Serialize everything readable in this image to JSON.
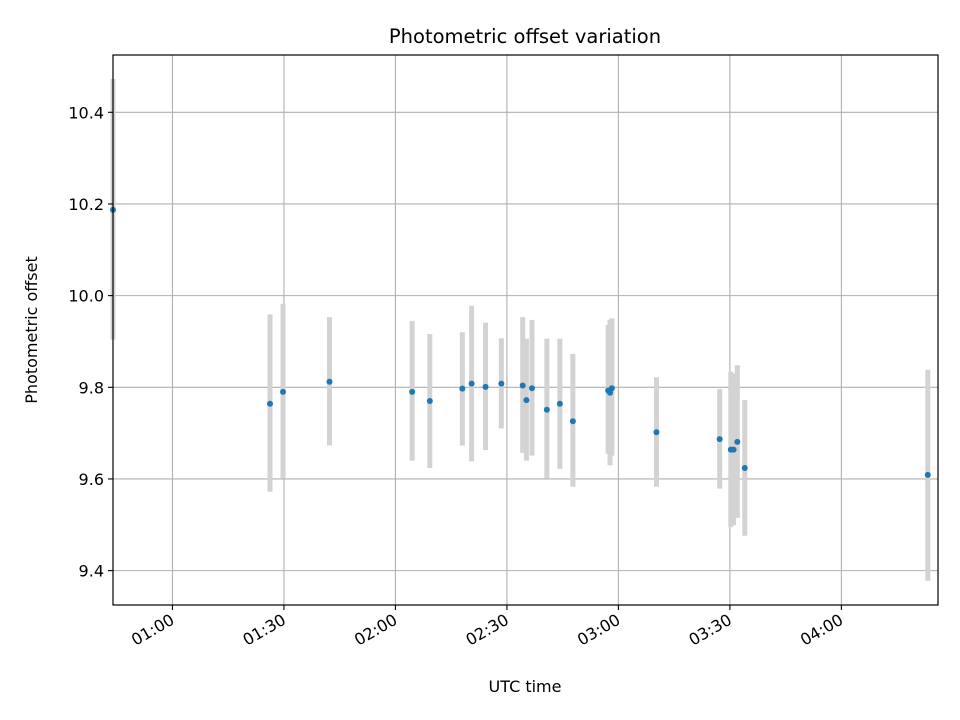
{
  "chart_data": {
    "type": "scatter",
    "title": "Photometric offset variation",
    "xlabel": "UTC time",
    "ylabel": "Photometric offset",
    "x_axis": "time",
    "xlim": [
      "00:44",
      "04:26"
    ],
    "ylim": [
      9.325,
      10.525
    ],
    "xticks": [
      "01:00",
      "01:30",
      "02:00",
      "02:30",
      "03:00",
      "03:30",
      "04:00"
    ],
    "yticks": [
      9.4,
      9.6,
      9.8,
      10.0,
      10.2,
      10.4
    ],
    "grid": true,
    "colors": {
      "point": "#1f77b4",
      "errorbar": "#d3d3d3",
      "grid": "#b0b0b0"
    },
    "points": [
      {
        "x": "00:44:00",
        "y": 10.187,
        "low": 9.904,
        "high": 10.473
      },
      {
        "x": "01:26:15",
        "y": 9.764,
        "low": 9.572,
        "high": 9.959
      },
      {
        "x": "01:29:45",
        "y": 9.79,
        "low": 9.601,
        "high": 9.982
      },
      {
        "x": "01:42:15",
        "y": 9.812,
        "low": 9.673,
        "high": 9.953
      },
      {
        "x": "02:04:30",
        "y": 9.79,
        "low": 9.64,
        "high": 9.945
      },
      {
        "x": "02:09:15",
        "y": 9.77,
        "low": 9.624,
        "high": 9.916
      },
      {
        "x": "02:18:00",
        "y": 9.797,
        "low": 9.673,
        "high": 9.92
      },
      {
        "x": "02:20:30",
        "y": 9.808,
        "low": 9.638,
        "high": 9.978
      },
      {
        "x": "02:24:15",
        "y": 9.801,
        "low": 9.663,
        "high": 9.941
      },
      {
        "x": "02:28:30",
        "y": 9.808,
        "low": 9.71,
        "high": 9.907
      },
      {
        "x": "02:34:15",
        "y": 9.804,
        "low": 9.657,
        "high": 9.953
      },
      {
        "x": "02:35:15",
        "y": 9.772,
        "low": 9.64,
        "high": 9.906
      },
      {
        "x": "02:36:45",
        "y": 9.798,
        "low": 9.651,
        "high": 9.947
      },
      {
        "x": "02:40:45",
        "y": 9.751,
        "low": 9.601,
        "high": 9.906
      },
      {
        "x": "02:44:15",
        "y": 9.764,
        "low": 9.622,
        "high": 9.906
      },
      {
        "x": "02:47:45",
        "y": 9.726,
        "low": 9.583,
        "high": 9.873
      },
      {
        "x": "02:57:15",
        "y": 9.793,
        "low": 9.655,
        "high": 9.936
      },
      {
        "x": "02:57:45",
        "y": 9.788,
        "low": 9.63,
        "high": 9.947
      },
      {
        "x": "02:58:15",
        "y": 9.798,
        "low": 9.651,
        "high": 9.95
      },
      {
        "x": "03:10:15",
        "y": 9.702,
        "low": 9.583,
        "high": 9.822
      },
      {
        "x": "03:27:15",
        "y": 9.687,
        "low": 9.579,
        "high": 9.796
      },
      {
        "x": "03:30:15",
        "y": 9.664,
        "low": 9.495,
        "high": 9.834
      },
      {
        "x": "03:31:00",
        "y": 9.664,
        "low": 9.499,
        "high": 9.83
      },
      {
        "x": "03:32:00",
        "y": 9.681,
        "low": 9.515,
        "high": 9.848
      },
      {
        "x": "03:34:00",
        "y": 9.624,
        "low": 9.476,
        "high": 9.772
      },
      {
        "x": "04:23:15",
        "y": 9.609,
        "low": 9.378,
        "high": 9.838
      }
    ]
  }
}
